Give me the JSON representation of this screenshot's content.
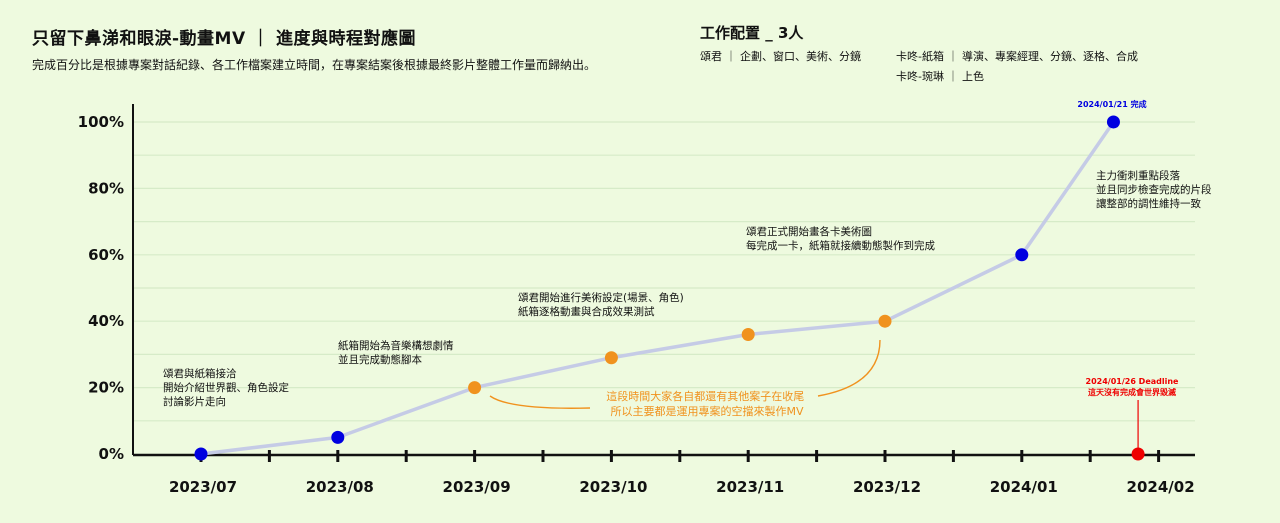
{
  "header": {
    "title": "只留下鼻涕和眼淚-動畫MV ｜ 進度與時程對應圖",
    "subtitle": "完成百分比是根據專案對話紀錄、各工作檔案建立時間，在專案結案後根據最終影片整體工作量而歸納出。"
  },
  "team": {
    "title": "工作配置 _ 3人",
    "members": [
      {
        "line": "頌君 ｜ 企劃、窗口、美術、分鏡"
      },
      {
        "line": "卡咚-紙箱 ｜ 導演、專案經理、分鏡、逐格、合成"
      },
      {
        "line": "卡咚-琬琳 ｜ 上色"
      }
    ]
  },
  "colors": {
    "background": "#eefadf",
    "line": "#c5cbe6",
    "point_blue": "#0000e0",
    "point_orange": "#f0921e",
    "deadline_red": "#ee0000",
    "grid": "#d6ebc8"
  },
  "chart_data": {
    "type": "line",
    "title": "",
    "xlabel": "",
    "ylabel": "",
    "ylim": [
      0,
      100
    ],
    "yticks": [
      "0%",
      "20%",
      "40%",
      "60%",
      "80%",
      "100%"
    ],
    "ytick_values": [
      0,
      20,
      40,
      60,
      80,
      100
    ],
    "xticks": [
      "2023/07",
      "2023/08",
      "2023/09",
      "2023/10",
      "2023/11",
      "2023/12",
      "2024/01",
      "2024/02"
    ],
    "grid": true,
    "series": [
      {
        "points": [
          {
            "x": 0,
            "y": 0,
            "color": "blue"
          },
          {
            "x": 1,
            "y": 5,
            "color": "blue"
          },
          {
            "x": 2,
            "y": 20,
            "color": "orange"
          },
          {
            "x": 3,
            "y": 29,
            "color": "orange"
          },
          {
            "x": 4,
            "y": 36,
            "color": "orange"
          },
          {
            "x": 5,
            "y": 40,
            "color": "orange"
          },
          {
            "x": 6,
            "y": 60,
            "color": "blue"
          },
          {
            "x": 6.67,
            "y": 100,
            "color": "blue"
          }
        ]
      }
    ],
    "completion_label": "2024/01/21 完成",
    "deadline": {
      "x": 6.85,
      "y": 0,
      "label1": "2024/01/26 Deadline",
      "label2": "這天沒有完成會世界毀滅"
    },
    "annotations": [
      {
        "lines": [
          "頌君與紙箱接洽",
          "開始介紹世界觀、角色設定",
          "討論影片走向"
        ]
      },
      {
        "lines": [
          "紙箱開始為音樂構想劇情",
          "並且完成動態腳本"
        ]
      },
      {
        "lines": [
          "頌君開始進行美術設定(場景、角色)",
          "紙箱逐格動畫與合成效果測試"
        ]
      },
      {
        "lines": [
          "頌君正式開始畫各卡美術圖",
          "每完成一卡，紙箱就接續動態製作到完成"
        ]
      },
      {
        "lines": [
          "主力衝刺重點段落",
          "並且同步檢查完成的片段",
          "讓整部的調性維持一致"
        ]
      }
    ],
    "orange_note": [
      "這段時間大家各自都還有其他案子在收尾",
      "所以主要都是運用專案的空擋來製作MV"
    ]
  }
}
